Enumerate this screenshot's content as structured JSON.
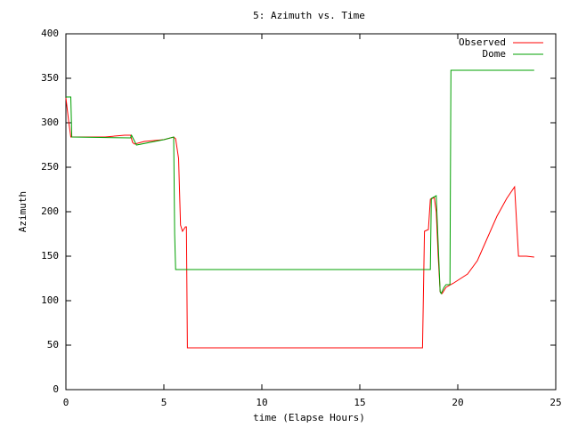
{
  "chart_data": {
    "type": "line",
    "title": "5: Azimuth vs. Time",
    "x_label": "time (Elapse Hours)",
    "y_label": "Azimuth",
    "xlim": [
      0,
      25
    ],
    "xticks": [
      0,
      5,
      10,
      15,
      20,
      25
    ],
    "ylim": [
      0,
      400
    ],
    "yticks": [
      0,
      50,
      100,
      150,
      200,
      250,
      300,
      350,
      400
    ],
    "legend": "top-right",
    "series": [
      {
        "name": "Observed",
        "color": "#ff0000",
        "x": [
          0,
          0.15,
          0.25,
          1,
          2,
          3,
          3.3,
          3.4,
          3.5,
          4,
          5,
          5.5,
          5.6,
          5.75,
          5.85,
          5.95,
          6.1,
          6.15,
          6.2,
          18.2,
          18.3,
          18.5,
          18.6,
          18.8,
          18.9,
          19.0,
          19.1,
          19.2,
          19.4,
          19.8,
          20.5,
          21,
          21.5,
          22,
          22.5,
          22.9,
          23.1,
          23.5,
          23.9
        ],
        "values": [
          328,
          300,
          284,
          284,
          284,
          286,
          286,
          278,
          276,
          279,
          281,
          284,
          282,
          260,
          185,
          178,
          183,
          183,
          47,
          47,
          178,
          180,
          214,
          216,
          200,
          150,
          110,
          108,
          115,
          120,
          130,
          145,
          170,
          195,
          215,
          228,
          150,
          150,
          149
        ]
      },
      {
        "name": "Dome",
        "color": "#00a000",
        "x": [
          0,
          0.25,
          0.3,
          3.3,
          3.35,
          3.6,
          5,
          5.5,
          5.55,
          5.6,
          18.6,
          18.65,
          18.9,
          19.1,
          19.15,
          19.3,
          19.4,
          19.6,
          19.65,
          23.9
        ],
        "values": [
          329,
          329,
          284,
          283,
          286,
          275,
          281,
          284,
          175,
          135,
          135,
          215,
          218,
          110,
          108,
          115,
          118,
          118,
          359,
          359
        ]
      }
    ]
  }
}
